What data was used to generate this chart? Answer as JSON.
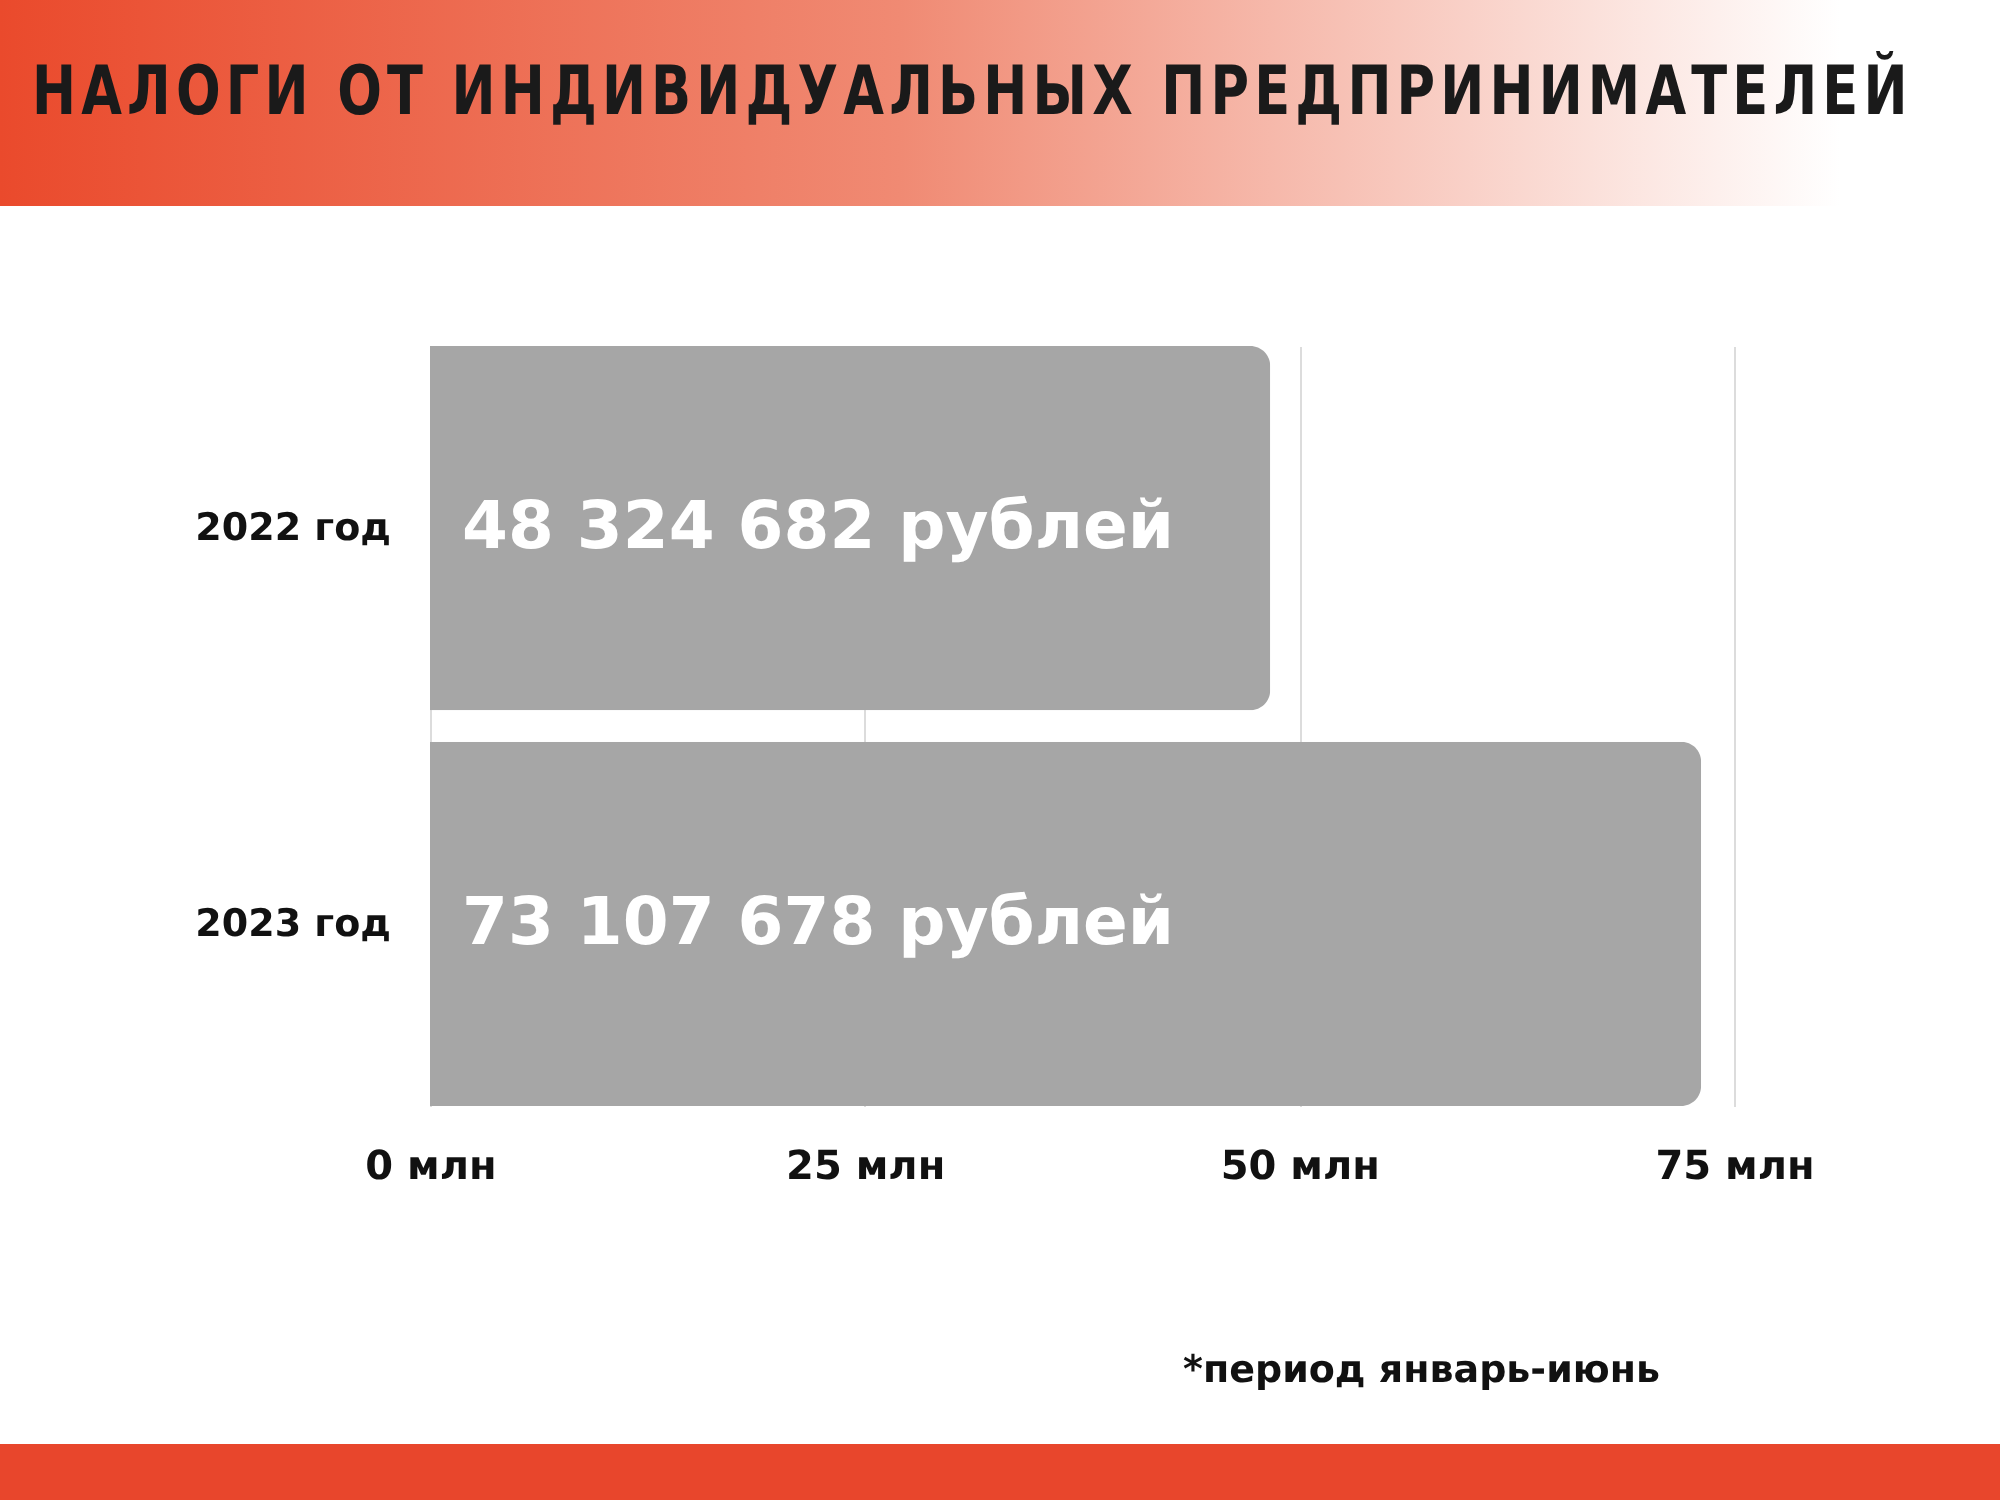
{
  "chart_data": {
    "type": "bar",
    "orientation": "horizontal",
    "title": "НАЛОГИ ОТ ИНДИВИДУАЛЬНЫХ ПРЕДПРИНИМАТЕЛЕЙ",
    "categories": [
      "2022 год",
      "2023 год"
    ],
    "values": [
      48.324682,
      73.107678
    ],
    "color": "#a6a6a6",
    "xlim": [
      0,
      75
    ],
    "xticks": [
      {
        "value": 0,
        "label": "0 млн"
      },
      {
        "value": 25,
        "label": "25 млн"
      },
      {
        "value": 50,
        "label": "50 млн"
      },
      {
        "value": 75,
        "label": "75 млн"
      }
    ],
    "grid": "x",
    "annotations": [
      {
        "text": "48 324 682 рублей",
        "x": 0,
        "y": "2022 год"
      },
      {
        "text": "73 107 678 рублей",
        "x": 0,
        "y": "2023 год"
      },
      "*период январь-июнь"
    ]
  }
}
